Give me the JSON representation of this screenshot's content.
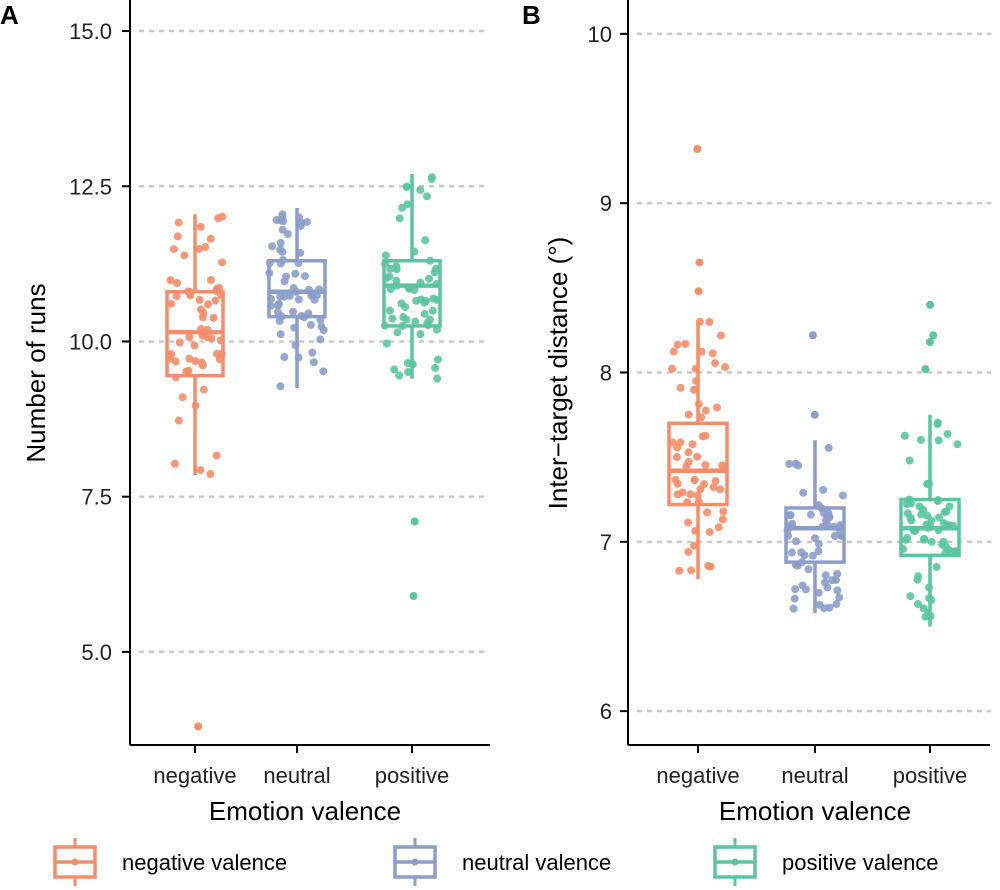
{
  "legend": [
    {
      "label": "negative valence",
      "color": "#F28E6B"
    },
    {
      "label": "neutral valence",
      "color": "#8C9DC9"
    },
    {
      "label": "positive valence",
      "color": "#5CC4A0"
    }
  ],
  "chart_data": [
    {
      "type": "boxplot",
      "panel": "A",
      "xlabel": "Emotion valence",
      "ylabel": "Number of runs",
      "ylim": [
        3.5,
        15.5
      ],
      "yticks": [
        5.0,
        7.5,
        10.0,
        12.5,
        15.0
      ],
      "ytick_labels": [
        "5.0",
        "7.5",
        "10.0",
        "12.5",
        "15.0"
      ],
      "categories": [
        "negative",
        "neutral",
        "positive"
      ],
      "boxes": [
        {
          "name": "negative",
          "color": "#F28E6B",
          "whisker_low": 7.85,
          "q1": 9.45,
          "median": 10.15,
          "q3": 10.8,
          "whisker_high": 12.05,
          "outliers": [
            3.8
          ]
        },
        {
          "name": "neutral",
          "color": "#8C9DC9",
          "whisker_low": 9.25,
          "q1": 10.4,
          "median": 10.8,
          "q3": 11.3,
          "whisker_high": 12.15,
          "outliers": []
        },
        {
          "name": "positive",
          "color": "#5CC4A0",
          "whisker_low": 9.4,
          "q1": 10.25,
          "median": 10.9,
          "q3": 11.3,
          "whisker_high": 12.7,
          "outliers": [
            7.1,
            5.9
          ]
        }
      ]
    },
    {
      "type": "boxplot",
      "panel": "B",
      "xlabel": "Emotion valence",
      "ylabel": "Inter−target distance (°)",
      "ylim": [
        5.8,
        10.2
      ],
      "yticks": [
        6,
        7,
        8,
        9,
        10
      ],
      "ytick_labels": [
        "6",
        "7",
        "8",
        "9",
        "10"
      ],
      "categories": [
        "negative",
        "neutral",
        "positive"
      ],
      "boxes": [
        {
          "name": "negative",
          "color": "#F28E6B",
          "whisker_low": 6.78,
          "q1": 7.22,
          "median": 7.42,
          "q3": 7.7,
          "whisker_high": 8.3,
          "outliers": [
            9.32,
            8.65,
            8.48
          ]
        },
        {
          "name": "neutral",
          "color": "#8C9DC9",
          "whisker_low": 6.58,
          "q1": 6.88,
          "median": 7.08,
          "q3": 7.2,
          "whisker_high": 7.6,
          "outliers": [
            8.22,
            7.75
          ]
        },
        {
          "name": "positive",
          "color": "#5CC4A0",
          "whisker_low": 6.5,
          "q1": 6.92,
          "median": 7.08,
          "q3": 7.25,
          "whisker_high": 7.75,
          "outliers": [
            8.4,
            8.22,
            8.18,
            8.02
          ]
        }
      ]
    }
  ]
}
